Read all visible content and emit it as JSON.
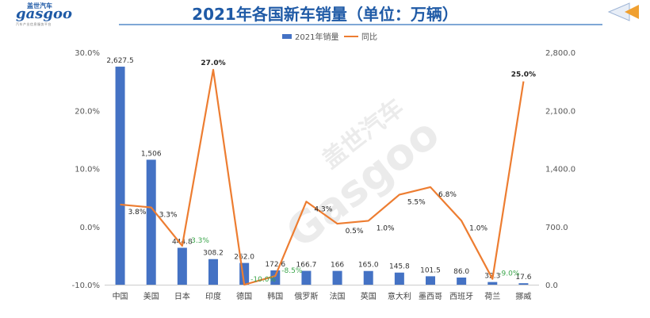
{
  "header": {
    "title": "2021年各国新车销量（单位：万辆）",
    "logo_text": "gasgoo",
    "logo_cn": "盖世汽车",
    "logo_sub": "汽车产业信息服务平台"
  },
  "watermark": {
    "cn": "盖世汽车",
    "en": "Gasgoo"
  },
  "colors": {
    "bar": "#4472c4",
    "line": "#ed7d31",
    "title": "#1f5aa6",
    "negative_label": "#3aa54a"
  },
  "chart_data": {
    "type": "bar",
    "title": "2021年各国新车销量（单位：万辆）",
    "categories": [
      "中国",
      "美国",
      "日本",
      "印度",
      "德国",
      "韩国",
      "俄罗斯",
      "法国",
      "英国",
      "意大利",
      "墨西哥",
      "西班牙",
      "荷兰",
      "挪威"
    ],
    "series": [
      {
        "name": "2021年销量",
        "type": "bar",
        "axis": "right",
        "values": [
          2627.5,
          1506,
          444.8,
          308.2,
          262.0,
          172.6,
          166.7,
          166,
          165.0,
          145.8,
          101.5,
          86.0,
          32.3,
          17.6
        ],
        "labels": [
          "2,627.5",
          "1,506",
          "444.8",
          "308.2",
          "262.0",
          "172.6",
          "166.7",
          "166",
          "165.0",
          "145.8",
          "101.5",
          "86.0",
          "32.3",
          "17.6"
        ]
      },
      {
        "name": "同比",
        "type": "line",
        "axis": "left",
        "values": [
          3.8,
          3.3,
          -3.3,
          27.0,
          -10.0,
          -8.5,
          4.3,
          0.5,
          1.0,
          5.5,
          6.8,
          1.0,
          -9.0,
          25.0
        ],
        "labels": [
          "3.8%",
          "3.3%",
          "-3.3%",
          "27.0%",
          "-10.0%",
          "-8.5%",
          "4.3%",
          "0.5%",
          "1.0%",
          "5.5%",
          "6.8%",
          "1.0%",
          "-9.0%",
          "25.0%"
        ]
      }
    ],
    "y_left": {
      "range": [
        -10,
        30
      ],
      "ticks": [
        "30.0%",
        "20.0%",
        "10.0%",
        "0.0%",
        "-10.0%"
      ]
    },
    "y_right": {
      "range": [
        0,
        2800
      ],
      "ticks": [
        "2,800.0",
        "2,100.0",
        "1,400.0",
        "700.0",
        "0.0"
      ]
    },
    "grid": false,
    "legend": {
      "placement": "top-center",
      "entries": [
        "2021年销量",
        "同比"
      ]
    }
  }
}
